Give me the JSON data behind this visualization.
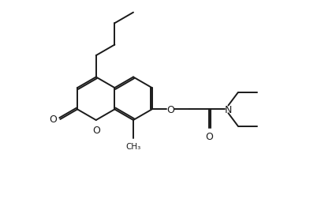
{
  "bg_color": "#ffffff",
  "line_color": "#1a1a1a",
  "lw": 1.4,
  "fs": 8.5,
  "bl": 0.72,
  "figsize": [
    3.93,
    2.53
  ],
  "dpi": 100,
  "xlim": [
    -0.5,
    9.8
  ],
  "ylim": [
    0.3,
    6.5
  ]
}
